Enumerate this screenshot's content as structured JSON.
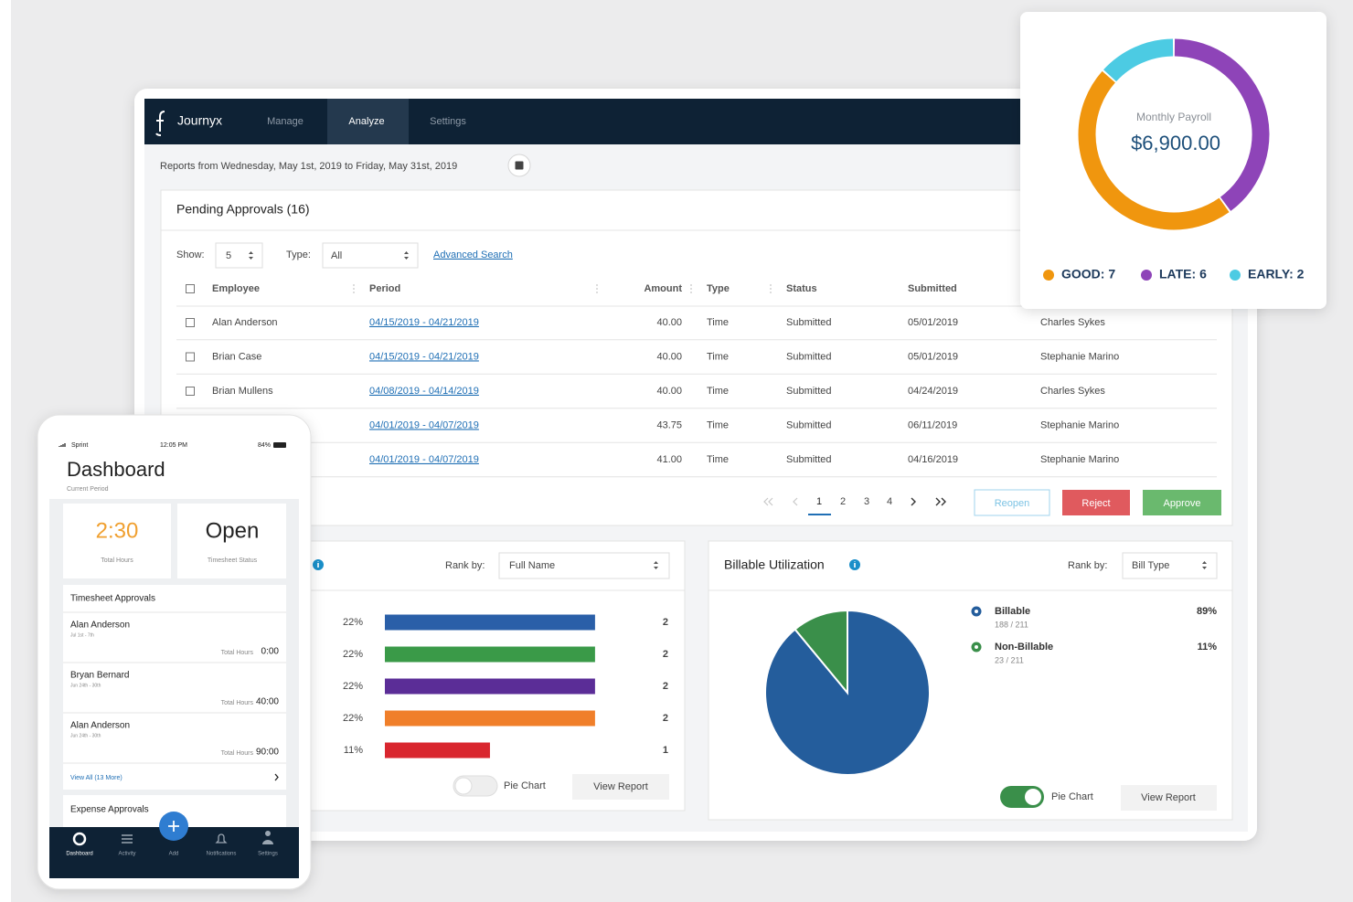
{
  "app": {
    "brand": "Journyx",
    "nav": [
      "Manage",
      "Analyze",
      "Settings"
    ]
  },
  "report_range": "Reports from Wednesday, May 1st, 2019 to Friday, May 31st, 2019",
  "approvals": {
    "title": "Pending Approvals (16)",
    "show_label": "Show:",
    "show_value": "5",
    "type_label": "Type:",
    "type_value": "All",
    "advanced_search": "Advanced Search",
    "columns": [
      "Employee",
      "Period",
      "Amount",
      "Type",
      "Status",
      "Submitted"
    ],
    "rows": [
      [
        "Alan Anderson",
        "04/15/2019 - 04/21/2019",
        "40.00",
        "Time",
        "Submitted",
        "05/01/2019",
        "Charles Sykes"
      ],
      [
        "Brian Case",
        "04/15/2019 - 04/21/2019",
        "40.00",
        "Time",
        "Submitted",
        "05/01/2019",
        "Stephanie Marino"
      ],
      [
        "Brian Mullens",
        "04/08/2019 - 04/14/2019",
        "40.00",
        "Time",
        "Submitted",
        "04/24/2019",
        "Charles Sykes"
      ],
      [
        null,
        "04/01/2019 - 04/07/2019",
        "43.75",
        "Time",
        "Submitted",
        "06/11/2019",
        "Stephanie Marino"
      ],
      [
        null,
        "04/01/2019 - 04/07/2019",
        "41.00",
        "Time",
        "Submitted",
        "04/16/2019",
        "Stephanie Marino"
      ]
    ],
    "pages": [
      "1",
      "2",
      "3",
      "4"
    ],
    "actions": [
      "Reopen",
      "Reject",
      "Approve"
    ]
  },
  "chart_data": [
    {
      "type": "donut",
      "title": "Monthly Payroll",
      "total_label": "$6,900.00",
      "categories": [
        "GOOD: 7",
        "LATE: 6",
        "EARLY: 2"
      ],
      "values": [
        7,
        6,
        2
      ],
      "colors": [
        "#f0960e",
        "#8e44b8",
        "#4ccbe3"
      ]
    },
    {
      "type": "bar",
      "values": [
        22,
        22,
        22,
        22,
        11
      ],
      "value_labels": [
        "22%",
        "22%",
        "22%",
        "22%",
        "11%"
      ],
      "counts": [
        2,
        2,
        2,
        2,
        1
      ],
      "colors": [
        "#2a5fa8",
        "#3a9a48",
        "#5b2d97",
        "#f07f2a",
        "#d9262e"
      ]
    },
    {
      "type": "pie",
      "title": "Billable Utilization",
      "categories": [
        "Billable",
        "Non-Billable"
      ],
      "values": [
        89,
        11
      ],
      "value_labels": [
        "89%",
        "11%"
      ],
      "sublabels": [
        "188 / 211",
        "23 / 211"
      ],
      "colors": [
        "#245d9c",
        "#3a8f4a"
      ]
    }
  ],
  "rank_panel": {
    "rank_label": "Rank by:",
    "rank_value": "Full Name",
    "toggle_label": "Pie Chart",
    "button": "View Report"
  },
  "utilization_panel": {
    "rank_label": "Rank by:",
    "rank_value": "Bill Type",
    "toggle_label": "Pie Chart",
    "button": "View Report"
  },
  "phone": {
    "carrier": "Sprint",
    "time": "12:05 PM",
    "battery": "84%",
    "title": "Dashboard",
    "subtitle": "Current Period",
    "tiles": [
      {
        "value": "2:30",
        "label": "Total Hours"
      },
      {
        "value": "Open",
        "label": "Timesheet Status"
      }
    ],
    "section": "Timesheet Approvals",
    "items": [
      {
        "name": "Alan Anderson",
        "period": "Jul 1st - 7th",
        "hours_label": "Total Hours",
        "hours": "0:00"
      },
      {
        "name": "Bryan Bernard",
        "period": "Jun 24th - 30th",
        "hours_label": "Total Hours",
        "hours": "40:00"
      },
      {
        "name": "Alan Anderson",
        "period": "Jun 24th - 30th",
        "hours_label": "Total Hours",
        "hours": "90:00"
      }
    ],
    "view_all": "View All (13 More)",
    "section2": "Expense Approvals",
    "tabs": [
      "Dashboard",
      "Activity",
      "Add",
      "Notifications",
      "Settings"
    ]
  }
}
